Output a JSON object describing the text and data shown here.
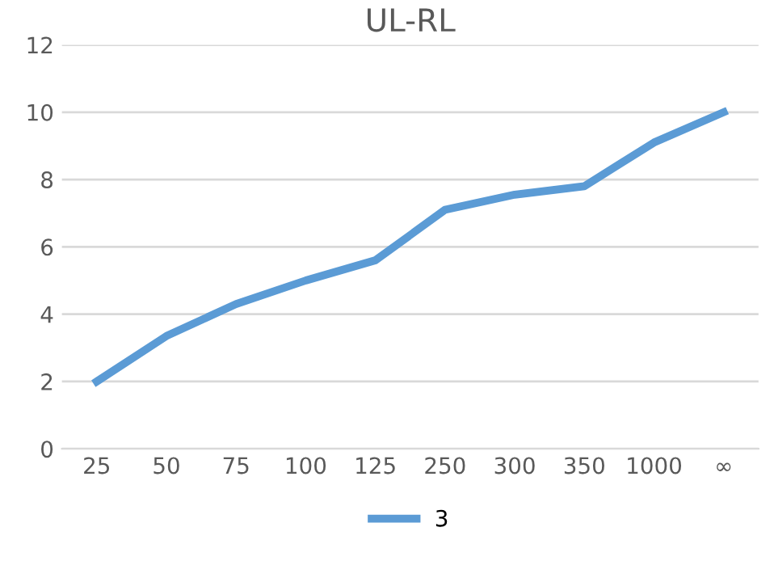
{
  "chart_data": {
    "type": "line",
    "title": "UL-RL",
    "categories": [
      "25",
      "50",
      "75",
      "100",
      "125",
      "250",
      "300",
      "350",
      "1000",
      "∞"
    ],
    "series": [
      {
        "name": "3",
        "color": "#5b9bd5",
        "values": [
          2,
          3.35,
          4.3,
          5,
          5.6,
          7.1,
          7.55,
          7.8,
          9.1,
          10
        ]
      }
    ],
    "ylim": [
      0,
      12
    ],
    "yticks": [
      0,
      2,
      4,
      6,
      8,
      10,
      12
    ],
    "grid": "y",
    "legend": "bottom",
    "marker": "none",
    "line_style": "solid"
  }
}
